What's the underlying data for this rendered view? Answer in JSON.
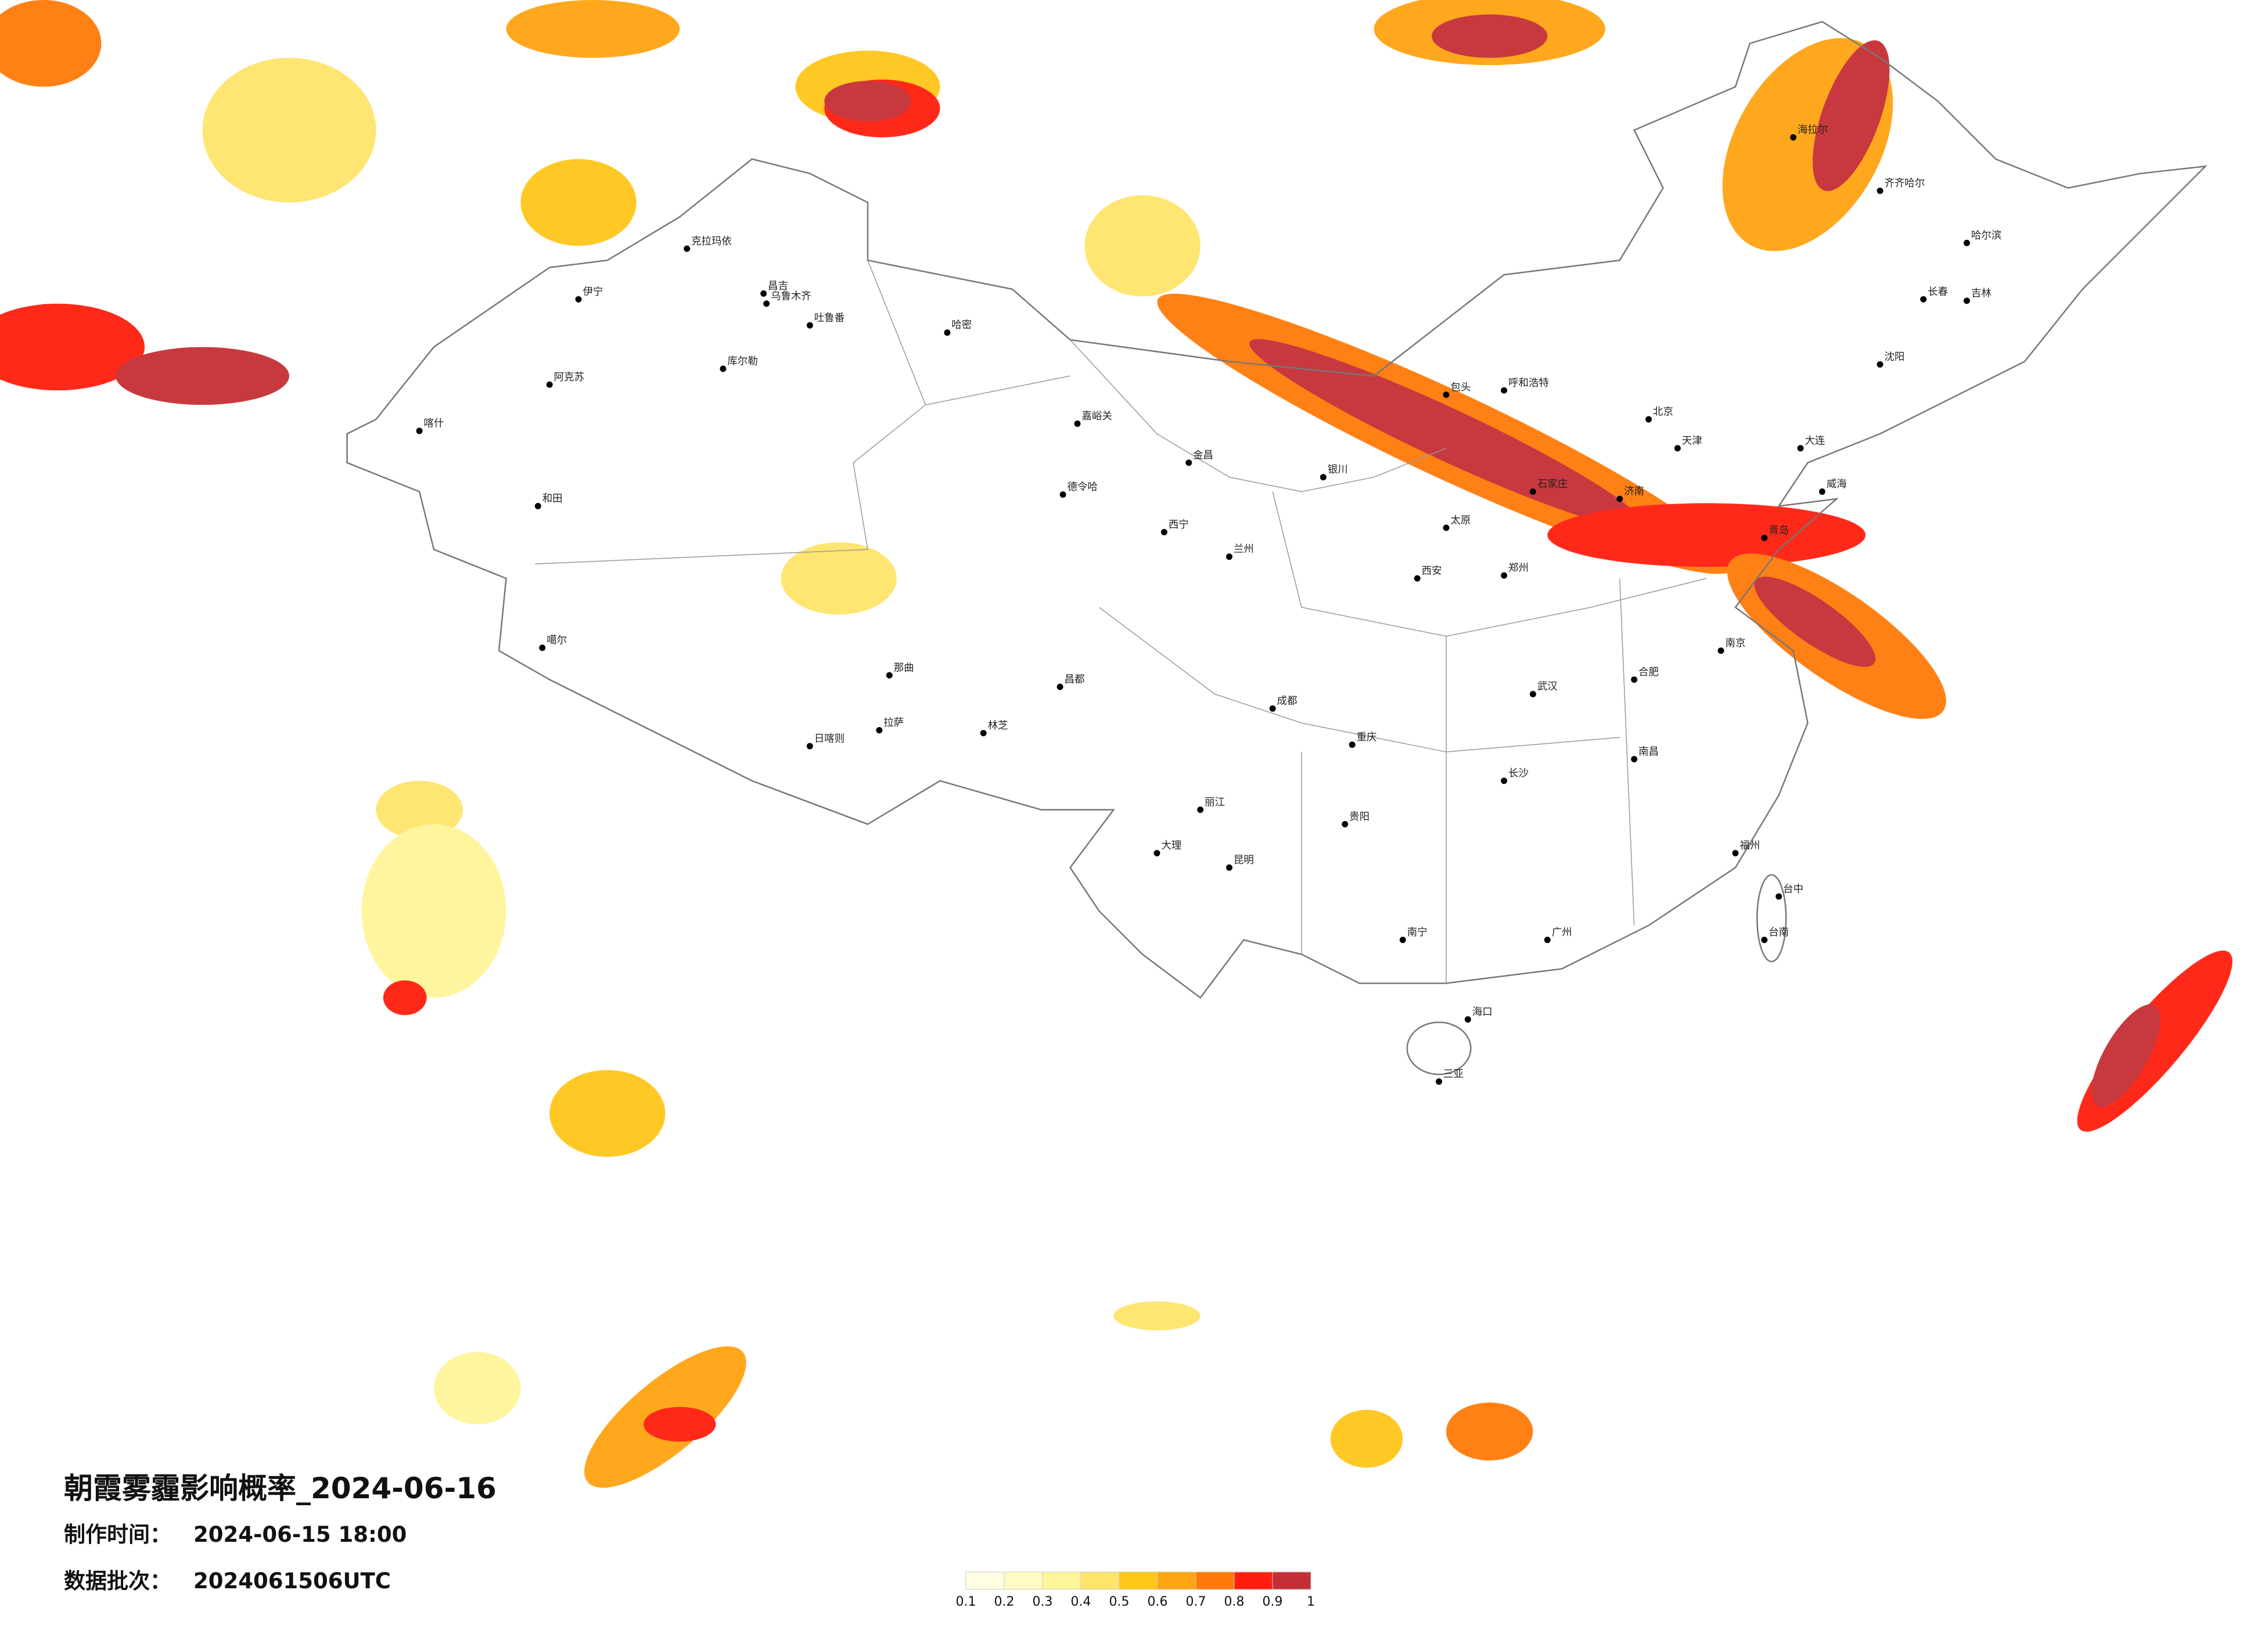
{
  "title": "朝霞雾霾影响概率_2024-06-16",
  "production_time": {
    "label": "制作时间：",
    "value": "2024-06-15 18:00"
  },
  "batch": {
    "label": "数据批次：",
    "value": "2024061506UTC"
  },
  "legend": {
    "colors": [
      "#fffee2",
      "#fffbc4",
      "#fff59a",
      "#ffe46a",
      "#ffc61a",
      "#ffa412",
      "#ff7a08",
      "#ff1e0e",
      "#c42f35"
    ],
    "ticks": [
      "0.1",
      "0.2",
      "0.3",
      "0.4",
      "0.5",
      "0.6",
      "0.7",
      "0.8",
      "0.9",
      "1"
    ]
  },
  "cities": [
    "乌鲁木齐",
    "克拉玛依",
    "伊宁",
    "阿克苏",
    "喀什",
    "和田",
    "哈密",
    "库尔勒",
    "吐鲁番",
    "昌吉",
    "噶尔",
    "日喀则",
    "拉萨",
    "那曲",
    "林芝",
    "昌都",
    "德令哈",
    "嘉峪关",
    "金昌",
    "西宁",
    "兰州",
    "银川",
    "呼和浩特",
    "包头",
    "海拉尔",
    "齐齐哈尔",
    "哈尔滨",
    "长春",
    "吉林",
    "沈阳",
    "大连",
    "石家庄",
    "太原",
    "郑州",
    "济南",
    "青岛",
    "威海",
    "南京",
    "合肥",
    "武汉",
    "长沙",
    "南昌",
    "福州",
    "台中",
    "台南",
    "广州",
    "南宁",
    "海口",
    "三亚",
    "贵阳",
    "昆明",
    "成都",
    "重庆",
    "西安",
    "大理",
    "丽江",
    "北京",
    "天津"
  ]
}
